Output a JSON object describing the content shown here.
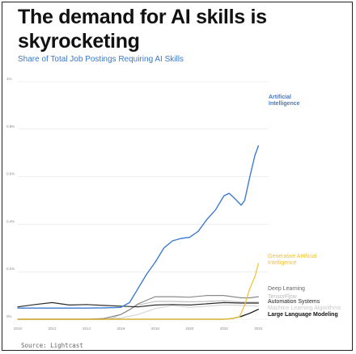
{
  "title": "The demand for AI skills is skyrocketing",
  "subtitle": "Share of Total Job Postings Requiring AI Skills",
  "source": "Source: Lightcast",
  "chart_data": {
    "type": "line",
    "xlim": [
      2010,
      2024.5
    ],
    "ylim": [
      0,
      1.0
    ],
    "x_ticks": [
      2010,
      2012,
      2014,
      2016,
      2018,
      2020,
      2022,
      2024
    ],
    "x_tick_labels": [
      "2010",
      "2012",
      "2014",
      "2016",
      "2018",
      "2020",
      "2022",
      "2024"
    ],
    "y_ticks": [
      0,
      0.2,
      0.4,
      0.6,
      0.8,
      1.0
    ],
    "y_tick_labels": [
      "0%",
      "0.2%",
      "0.4%",
      "0.6%",
      "0.8%",
      "1%"
    ],
    "grid": true,
    "series": [
      {
        "name": "Artificial Intelligence",
        "color": "#3d7bd2",
        "label_color": "#3d7bd2",
        "points": [
          [
            2010,
            0.047
          ],
          [
            2011,
            0.047
          ],
          [
            2012,
            0.047
          ],
          [
            2013,
            0.047
          ],
          [
            2014,
            0.047
          ],
          [
            2015,
            0.048
          ],
          [
            2016,
            0.05
          ],
          [
            2016.5,
            0.07
          ],
          [
            2017,
            0.13
          ],
          [
            2017.5,
            0.19
          ],
          [
            2018,
            0.24
          ],
          [
            2018.5,
            0.3
          ],
          [
            2019,
            0.33
          ],
          [
            2019.5,
            0.34
          ],
          [
            2020,
            0.345
          ],
          [
            2020.5,
            0.37
          ],
          [
            2021,
            0.42
          ],
          [
            2021.5,
            0.46
          ],
          [
            2022,
            0.52
          ],
          [
            2022.3,
            0.53
          ],
          [
            2022.6,
            0.51
          ],
          [
            2023,
            0.48
          ],
          [
            2023.2,
            0.5
          ],
          [
            2023.5,
            0.6
          ],
          [
            2023.8,
            0.69
          ],
          [
            2024,
            0.73
          ]
        ]
      },
      {
        "name": "Generative Artificial Intelligence",
        "color": "#f2c12e",
        "label_color": "#f0c030",
        "points": [
          [
            2010,
            0.0
          ],
          [
            2015,
            0.0
          ],
          [
            2020,
            0.0
          ],
          [
            2022,
            0.0
          ],
          [
            2022.5,
            0.003
          ],
          [
            2022.9,
            0.01
          ],
          [
            2023.2,
            0.06
          ],
          [
            2023.5,
            0.13
          ],
          [
            2023.8,
            0.18
          ],
          [
            2024,
            0.235
          ]
        ]
      },
      {
        "name": "Deep Learning",
        "color": "#8a8a8a",
        "label_color": "#666666",
        "points": [
          [
            2010,
            0.0
          ],
          [
            2012,
            0.0
          ],
          [
            2014,
            0.0
          ],
          [
            2015,
            0.003
          ],
          [
            2016,
            0.02
          ],
          [
            2016.5,
            0.04
          ],
          [
            2017,
            0.065
          ],
          [
            2017.5,
            0.08
          ],
          [
            2018,
            0.095
          ],
          [
            2019,
            0.095
          ],
          [
            2020,
            0.093
          ],
          [
            2021,
            0.1
          ],
          [
            2022,
            0.1
          ],
          [
            2022.5,
            0.095
          ],
          [
            2023,
            0.09
          ],
          [
            2023.5,
            0.09
          ],
          [
            2024,
            0.095
          ]
        ]
      },
      {
        "name": "TensorFlow",
        "color": "#c0c0c0",
        "label_color": "#bbbbbb",
        "points": [
          [
            2010,
            0.0
          ],
          [
            2015,
            0.0
          ],
          [
            2015.5,
            0.005
          ],
          [
            2016,
            0.02
          ],
          [
            2016.5,
            0.04
          ],
          [
            2017,
            0.06
          ],
          [
            2018,
            0.075
          ],
          [
            2019,
            0.075
          ],
          [
            2020,
            0.073
          ],
          [
            2021,
            0.075
          ],
          [
            2022,
            0.078
          ],
          [
            2023,
            0.072
          ],
          [
            2024,
            0.072
          ]
        ]
      },
      {
        "name": "Automation Systems",
        "color": "#2b2b2b",
        "label_color": "#222222",
        "points": [
          [
            2010,
            0.052
          ],
          [
            2011,
            0.062
          ],
          [
            2012,
            0.07
          ],
          [
            2013,
            0.06
          ],
          [
            2014,
            0.062
          ],
          [
            2015,
            0.058
          ],
          [
            2016,
            0.055
          ],
          [
            2017,
            0.052
          ],
          [
            2018,
            0.06
          ],
          [
            2019,
            0.062
          ],
          [
            2020,
            0.06
          ],
          [
            2021,
            0.065
          ],
          [
            2022,
            0.07
          ],
          [
            2023,
            0.068
          ],
          [
            2024,
            0.068
          ]
        ]
      },
      {
        "name": "Machine Learning Algorithms",
        "color": "#d6d6d6",
        "label_color": "#c8c8c8",
        "points": [
          [
            2010,
            0.0
          ],
          [
            2015,
            0.0
          ],
          [
            2016,
            0.005
          ],
          [
            2017,
            0.02
          ],
          [
            2018,
            0.045
          ],
          [
            2019,
            0.058
          ],
          [
            2020,
            0.05
          ],
          [
            2021,
            0.055
          ],
          [
            2022,
            0.06
          ],
          [
            2023,
            0.058
          ],
          [
            2024,
            0.055
          ]
        ]
      },
      {
        "name": "Large Language Modeling",
        "color": "#111111",
        "label_color": "#111111",
        "points": [
          [
            2010,
            0.0
          ],
          [
            2020,
            0.0
          ],
          [
            2022,
            0.0
          ],
          [
            2022.5,
            0.003
          ],
          [
            2023,
            0.012
          ],
          [
            2023.5,
            0.025
          ],
          [
            2024,
            0.042
          ]
        ]
      }
    ]
  }
}
